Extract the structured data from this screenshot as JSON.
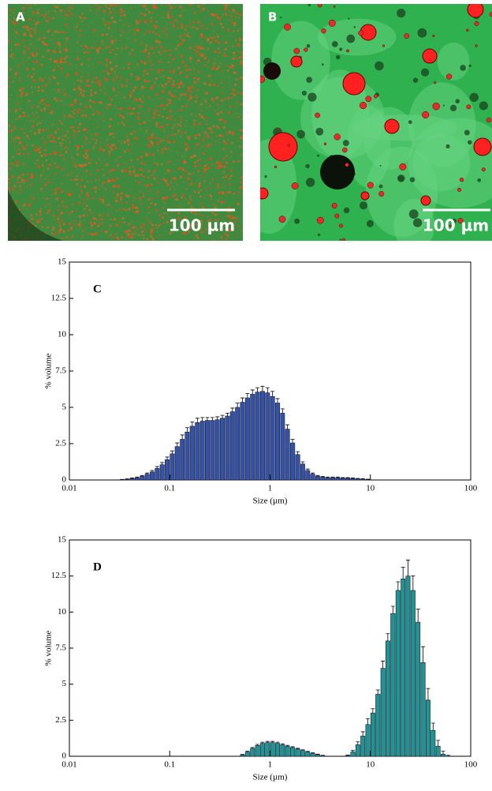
{
  "panels": [
    {
      "label": "A",
      "scale_bar": "100 µm"
    },
    {
      "label": "B",
      "scale_bar": "100 µm"
    }
  ],
  "chart_data": [
    {
      "type": "histogram",
      "annotation": "C",
      "xlabel": "Size (µm)",
      "ylabel": "% volume",
      "log_x": true,
      "color": "#3553a4",
      "xlim": [
        0.01,
        100
      ],
      "xticks": [
        0.01,
        0.1,
        1,
        10,
        100
      ],
      "ylim": [
        0,
        15
      ],
      "yticks": [
        0,
        2.5,
        5,
        7.5,
        10,
        12.5,
        15
      ],
      "bins": [
        0.0316,
        0.0355,
        0.0398,
        0.0447,
        0.0501,
        0.0562,
        0.0631,
        0.0708,
        0.0794,
        0.0891,
        0.1,
        0.112,
        0.126,
        0.141,
        0.158,
        0.178,
        0.2,
        0.224,
        0.251,
        0.282,
        0.316,
        0.355,
        0.398,
        0.447,
        0.501,
        0.562,
        0.631,
        0.708,
        0.794,
        0.891,
        1,
        1.12,
        1.26,
        1.41,
        1.58,
        1.78,
        2,
        2.24,
        2.51,
        2.82,
        3.16,
        3.55,
        3.98,
        4.47,
        5.01,
        5.62,
        6.31,
        7.08,
        7.94,
        8.91,
        10
      ],
      "values": [
        0.02,
        0.05,
        0.1,
        0.15,
        0.25,
        0.4,
        0.55,
        0.8,
        1.05,
        1.4,
        1.8,
        2.3,
        2.8,
        3.3,
        3.7,
        3.95,
        4.05,
        4.1,
        4.1,
        4.15,
        4.25,
        4.4,
        4.7,
        5.0,
        5.35,
        5.65,
        5.9,
        6.05,
        6.1,
        6.0,
        5.75,
        5.3,
        4.6,
        3.5,
        2.55,
        1.75,
        1.1,
        0.65,
        0.4,
        0.25,
        0.2,
        0.15,
        0.15,
        0.15,
        0.12,
        0.12,
        0.1,
        0.08,
        0.06,
        0.03
      ],
      "errors": [
        0.02,
        0.03,
        0.04,
        0.05,
        0.06,
        0.08,
        0.1,
        0.12,
        0.15,
        0.18,
        0.2,
        0.25,
        0.3,
        0.3,
        0.3,
        0.3,
        0.25,
        0.2,
        0.2,
        0.2,
        0.2,
        0.2,
        0.25,
        0.3,
        0.3,
        0.3,
        0.3,
        0.3,
        0.35,
        0.35,
        0.35,
        0.3,
        0.3,
        0.3,
        0.25,
        0.2,
        0.15,
        0.1,
        0.08,
        0.06,
        0.05,
        0.05,
        0.05,
        0.05,
        0.04,
        0.04,
        0.04,
        0.03,
        0.03,
        0.02
      ]
    },
    {
      "type": "histogram",
      "annotation": "D",
      "xlabel": "Size (µm)",
      "ylabel": "% volume",
      "log_x": true,
      "color": "#1f9490",
      "xlim": [
        0.01,
        100
      ],
      "xticks": [
        0.01,
        0.1,
        1,
        10,
        100
      ],
      "ylim": [
        0,
        15
      ],
      "yticks": [
        0,
        2.5,
        5,
        7.5,
        10,
        12.5,
        15
      ],
      "bins": [
        0.501,
        0.562,
        0.631,
        0.708,
        0.794,
        0.891,
        1,
        1.12,
        1.26,
        1.41,
        1.58,
        1.78,
        2,
        2.24,
        2.51,
        2.82,
        3.16,
        3.55,
        3.98,
        4.47,
        5.01,
        5.62,
        6.31,
        7.08,
        7.94,
        8.91,
        10,
        11.2,
        12.6,
        14.1,
        15.8,
        17.8,
        20,
        22.4,
        25.1,
        28.2,
        31.6,
        35.5,
        39.8,
        44.7,
        50.1,
        56.2,
        63.1
      ],
      "values": [
        0.1,
        0.3,
        0.55,
        0.75,
        0.9,
        0.95,
        0.95,
        0.9,
        0.8,
        0.7,
        0.6,
        0.5,
        0.4,
        0.3,
        0.2,
        0.12,
        0.05,
        0,
        0,
        0,
        0,
        0.05,
        0.3,
        0.8,
        1.4,
        2.2,
        3.0,
        4.3,
        6.1,
        8.0,
        9.9,
        11.5,
        12.3,
        12.5,
        11.5,
        9.3,
        6.5,
        3.9,
        1.8,
        0.7,
        0.15,
        0.02
      ],
      "errors": [
        0.03,
        0.05,
        0.06,
        0.07,
        0.08,
        0.08,
        0.08,
        0.08,
        0.07,
        0.06,
        0.06,
        0.05,
        0.05,
        0.04,
        0.04,
        0.03,
        0.02,
        0,
        0,
        0,
        0,
        0.03,
        0.1,
        0.2,
        0.3,
        0.4,
        0.3,
        0.3,
        0.5,
        0.5,
        0.5,
        0.6,
        0.8,
        1.1,
        1.0,
        0.9,
        1.1,
        0.8,
        0.5,
        0.4,
        0.2,
        0.05
      ]
    }
  ]
}
